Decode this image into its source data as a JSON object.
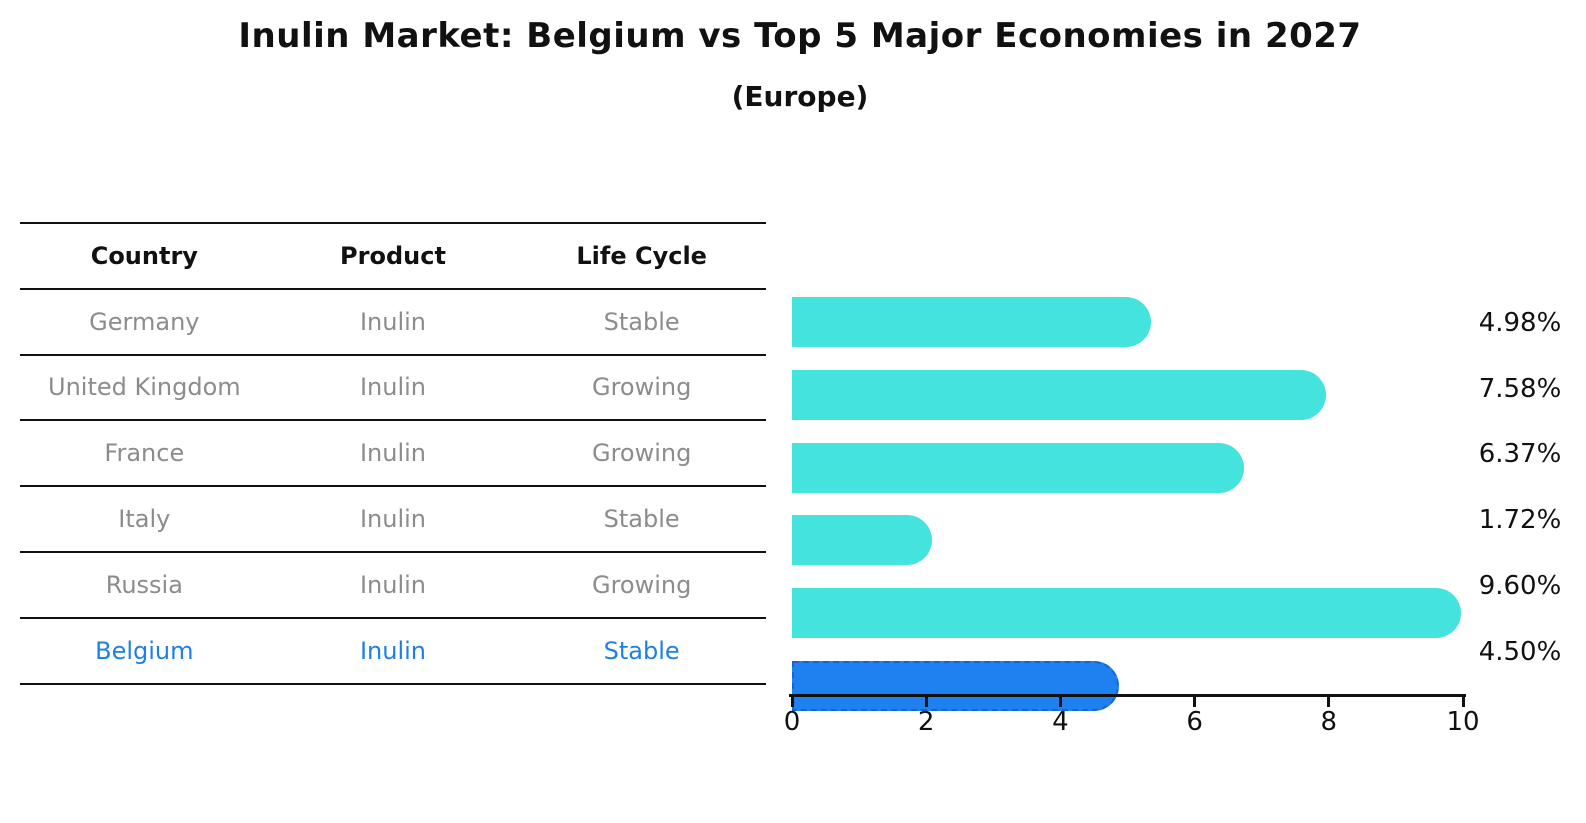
{
  "title": "Inulin Market: Belgium vs Top 5 Major Economies in 2027",
  "subtitle": "(Europe)",
  "table": {
    "columns": [
      "Country",
      "Product",
      "Life Cycle"
    ],
    "rows": [
      {
        "country": "Germany",
        "product": "Inulin",
        "life_cycle": "Stable"
      },
      {
        "country": "United Kingdom",
        "product": "Inulin",
        "life_cycle": "Growing"
      },
      {
        "country": "France",
        "product": "Inulin",
        "life_cycle": "Growing"
      },
      {
        "country": "Italy",
        "product": "Inulin",
        "life_cycle": "Stable"
      },
      {
        "country": "Russia",
        "product": "Inulin",
        "life_cycle": "Growing"
      },
      {
        "country": "Belgium",
        "product": "Inulin",
        "life_cycle": "Stable"
      }
    ]
  },
  "chart_data": {
    "type": "bar",
    "orientation": "horizontal",
    "title": "Inulin Market: Belgium vs Top 5 Major Economies in 2027",
    "subtitle": "(Europe)",
    "categories": [
      "Germany",
      "United Kingdom",
      "France",
      "Italy",
      "Russia",
      "Belgium"
    ],
    "values": [
      4.98,
      7.58,
      6.37,
      1.72,
      9.6,
      4.5
    ],
    "percent_labels": [
      "4.98%",
      "7.58%",
      "6.37%",
      "1.72%",
      "9.60%",
      "4.50%"
    ],
    "x_ticks": [
      0,
      2,
      4,
      6,
      8,
      10
    ],
    "xlim": [
      0,
      10
    ],
    "xlabel": "",
    "ylabel": "",
    "grid": false,
    "legend": false,
    "highlight_category": "Belgium",
    "colors": {
      "bar": "#44e3dd",
      "highlight_bar": "#1f80f0",
      "highlight_border": "#1465d2",
      "highlight_text": "#1f7fe8",
      "row_text": "#8c8c8c",
      "header_text": "#111111",
      "label_text": "#111111"
    }
  }
}
